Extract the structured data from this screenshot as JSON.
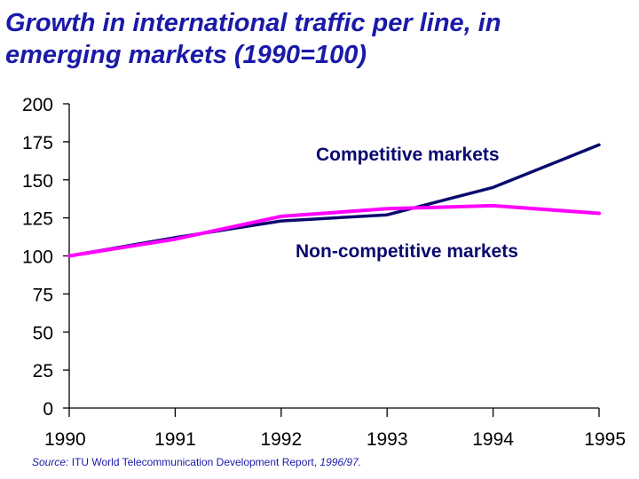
{
  "title_lines": [
    "Growth in international traffic per line, in",
    "emerging markets (1990=100)"
  ],
  "source": {
    "prefix": "Source:",
    "text": "ITU World Telecommunication Development Report,",
    "edition": "1996/97."
  },
  "colors": {
    "competitive": "#0a0a6e",
    "non_competitive": "#ff00ff",
    "title": "#1a1aa8"
  },
  "chart_data": {
    "type": "line",
    "x": [
      1990,
      1991,
      1992,
      1993,
      1994,
      1995
    ],
    "x_tick_labels": [
      "1990",
      "1991",
      "1992",
      "1993",
      "1994",
      "1995"
    ],
    "y_tick_labels": [
      "0",
      "25",
      "50",
      "75",
      "100",
      "125",
      "150",
      "175",
      "200"
    ],
    "ylim": [
      0,
      200
    ],
    "grid": false,
    "series": [
      {
        "name": "Competitive markets",
        "values": [
          100,
          112,
          123,
          127,
          145,
          173
        ]
      },
      {
        "name": "Non-competitive markets",
        "values": [
          100,
          111,
          126,
          131,
          133,
          128
        ]
      }
    ]
  }
}
